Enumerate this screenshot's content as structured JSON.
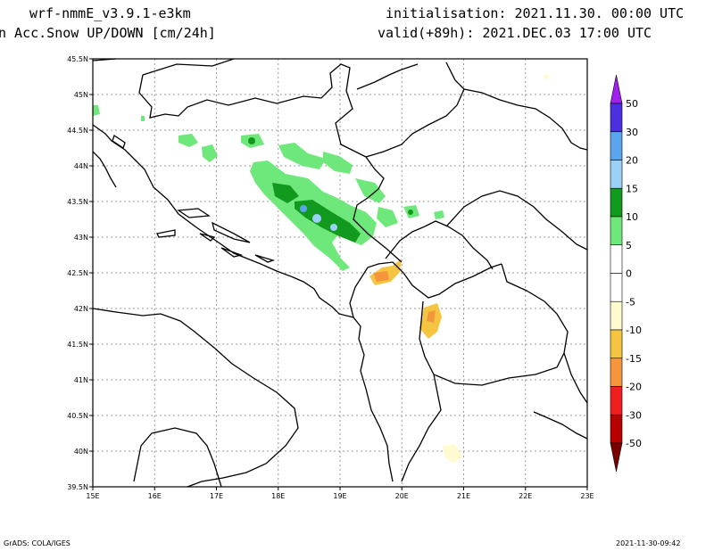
{
  "header": {
    "model": "wrf-nmmE_v3.9.1-e3km",
    "field": "n Acc.Snow UP/DOWN [cm/24h]",
    "init": "initialisation: 2021.11.30.  00:00 UTC",
    "valid": "valid(+89h): 2021.DEC.03 17:00 UTC"
  },
  "footer": {
    "left": "GrADS: COLA/IGES",
    "right": "2021-11-30-09:42"
  },
  "map": {
    "lon_labels": [
      "15E",
      "16E",
      "17E",
      "18E",
      "19E",
      "20E",
      "21E",
      "22E",
      "23E"
    ],
    "lat_labels": [
      "45.5N",
      "45N",
      "44.5N",
      "44N",
      "43.5N",
      "43N",
      "42.5N",
      "42N",
      "41.5N",
      "41N",
      "40.5N",
      "40N",
      "39.5N"
    ]
  },
  "colorbar": {
    "labels": [
      "50",
      "30",
      "20",
      "15",
      "10",
      "5",
      "0",
      "-5",
      "-10",
      "-15",
      "-20",
      "-30",
      "-50"
    ],
    "colors": [
      "#4b2fe0",
      "#5ba5ee",
      "#9bd0f7",
      "#129a1e",
      "#6ee87a",
      "#ffffff",
      "#ffffff",
      "#fffbd0",
      "#f5c542",
      "#f5963c",
      "#ef1f1f",
      "#b80000"
    ],
    "top_arrow_color": "#a020f0",
    "bottom_arrow_color": "#7a0000"
  }
}
